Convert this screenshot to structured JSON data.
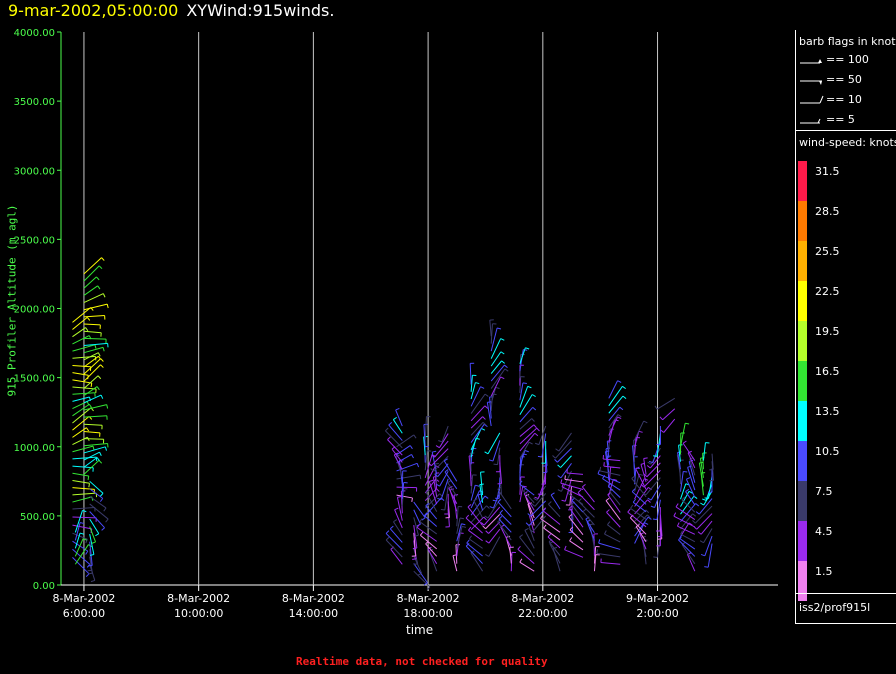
{
  "header": {
    "datetime": "9-mar-2002,05:00:00",
    "name": "XYWind:915winds."
  },
  "footer": {
    "warning": "Realtime data, not checked for quality"
  },
  "legend": {
    "flags_title": "barb flags in knots",
    "flags": [
      "== 100",
      "== 50",
      "== 10",
      "== 5"
    ],
    "speed_title": "wind-speed: knots",
    "speed_bins": [
      {
        "label": "31.5",
        "color": "#ff1a4a"
      },
      {
        "label": "28.5",
        "color": "#ff7a00"
      },
      {
        "label": "25.5",
        "color": "#ffb000"
      },
      {
        "label": "22.5",
        "color": "#ffff00"
      },
      {
        "label": "19.5",
        "color": "#b4ff2a"
      },
      {
        "label": "16.5",
        "color": "#33e633"
      },
      {
        "label": "13.5",
        "color": "#00ffff"
      },
      {
        "label": "10.5",
        "color": "#4a4aff"
      },
      {
        "label": "7.5",
        "color": "#3a3a6a"
      },
      {
        "label": "4.5",
        "color": "#9a2aee"
      },
      {
        "label": "1.5",
        "color": "#f080f0"
      }
    ],
    "source": "iss2/prof915l"
  },
  "chart_data": {
    "type": "scatter",
    "title": "XYWind:915winds.",
    "xlabel": "time",
    "ylabel": "915 Profiler Altitude (m agl)",
    "ylim": [
      0,
      4000
    ],
    "y_ticks": [
      "0.00",
      "500.00",
      "1000.00",
      "1500.00",
      "2000.00",
      "2500.00",
      "3000.00",
      "3500.00",
      "4000.00"
    ],
    "xlim_hours": [
      5.2,
      30.2
    ],
    "x_ticks": [
      {
        "date": "8-Mar-2002",
        "time": "6:00:00",
        "hour": 6
      },
      {
        "date": "8-Mar-2002",
        "time": "10:00:00",
        "hour": 10
      },
      {
        "date": "8-Mar-2002",
        "time": "14:00:00",
        "hour": 14
      },
      {
        "date": "8-Mar-2002",
        "time": "18:00:00",
        "hour": 18
      },
      {
        "date": "8-Mar-2002",
        "time": "22:00:00",
        "hour": 22
      },
      {
        "date": "9-Mar-2002",
        "time": "2:00:00",
        "hour": 26
      }
    ],
    "grid": "vertical lines at tick times",
    "profiles": [
      {
        "hour": 5.6,
        "bottom": 600,
        "top": 1900,
        "dir": 75,
        "speed": 17
      },
      {
        "hour": 5.6,
        "bottom": 200,
        "top": 550,
        "dir": 110,
        "speed": 7
      },
      {
        "hour": 5.7,
        "bottom": 150,
        "top": 380,
        "dir": 40,
        "speed": 13
      },
      {
        "hour": 6.0,
        "bottom": 800,
        "top": 2250,
        "dir": 70,
        "speed": 17
      },
      {
        "hour": 6.2,
        "bottom": 150,
        "top": 750,
        "dir": 150,
        "speed": 10
      },
      {
        "hour": 16.9,
        "bottom": 650,
        "top": 1000,
        "dir": 80,
        "speed": 5
      },
      {
        "hour": 17.1,
        "bottom": 150,
        "top": 1150,
        "dir": 340,
        "speed": 6
      },
      {
        "hour": 17.5,
        "bottom": 100,
        "top": 600,
        "dir": 150,
        "speed": 5
      },
      {
        "hour": 17.9,
        "bottom": 500,
        "top": 1050,
        "dir": 20,
        "speed": 6
      },
      {
        "hour": 18.3,
        "bottom": 100,
        "top": 800,
        "dir": 330,
        "speed": 5
      },
      {
        "hour": 18.7,
        "bottom": 550,
        "top": 1150,
        "dir": 200,
        "speed": 6
      },
      {
        "hour": 19.0,
        "bottom": 100,
        "top": 750,
        "dir": 350,
        "speed": 5
      },
      {
        "hour": 19.5,
        "bottom": 400,
        "top": 1450,
        "dir": 20,
        "speed": 7
      },
      {
        "hour": 19.9,
        "bottom": 100,
        "top": 650,
        "dir": 330,
        "speed": 6
      },
      {
        "hour": 20.2,
        "bottom": 1150,
        "top": 1800,
        "dir": 15,
        "speed": 8
      },
      {
        "hour": 20.5,
        "bottom": 350,
        "top": 1100,
        "dir": 200,
        "speed": 6
      },
      {
        "hour": 20.9,
        "bottom": 100,
        "top": 550,
        "dir": 340,
        "speed": 5
      },
      {
        "hour": 21.2,
        "bottom": 600,
        "top": 1600,
        "dir": 25,
        "speed": 7
      },
      {
        "hour": 21.7,
        "bottom": 100,
        "top": 650,
        "dir": 320,
        "speed": 4
      },
      {
        "hour": 22.1,
        "bottom": 500,
        "top": 1150,
        "dir": 200,
        "speed": 6
      },
      {
        "hour": 22.6,
        "bottom": 100,
        "top": 550,
        "dir": 330,
        "speed": 4
      },
      {
        "hour": 23.0,
        "bottom": 550,
        "top": 1100,
        "dir": 200,
        "speed": 6
      },
      {
        "hour": 23.4,
        "bottom": 200,
        "top": 800,
        "dir": 300,
        "speed": 4
      },
      {
        "hour": 23.8,
        "bottom": 100,
        "top": 600,
        "dir": 340,
        "speed": 5
      },
      {
        "hour": 24.3,
        "bottom": 650,
        "top": 1350,
        "dir": 15,
        "speed": 7
      },
      {
        "hour": 24.7,
        "bottom": 150,
        "top": 900,
        "dir": 300,
        "speed": 5
      },
      {
        "hour": 25.2,
        "bottom": 300,
        "top": 1050,
        "dir": 20,
        "speed": 6
      },
      {
        "hour": 25.6,
        "bottom": 150,
        "top": 800,
        "dir": 330,
        "speed": 5
      },
      {
        "hour": 26.1,
        "bottom": 350,
        "top": 1150,
        "dir": 200,
        "speed": 6
      },
      {
        "hour": 26.6,
        "bottom": 1200,
        "top": 1350,
        "dir": 240,
        "speed": 7
      },
      {
        "hour": 26.8,
        "bottom": 350,
        "top": 1000,
        "dir": 15,
        "speed": 9
      },
      {
        "hour": 27.3,
        "bottom": 100,
        "top": 900,
        "dir": 320,
        "speed": 6
      },
      {
        "hour": 27.6,
        "bottom": 650,
        "top": 900,
        "dir": 15,
        "speed": 13
      },
      {
        "hour": 27.9,
        "bottom": 300,
        "top": 950,
        "dir": 200,
        "speed": 8
      }
    ]
  }
}
